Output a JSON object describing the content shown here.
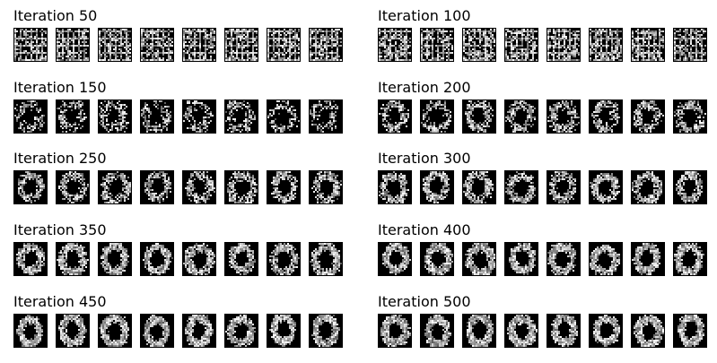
{
  "panels": [
    {
      "title": "Iteration 50",
      "iteration": 50,
      "samples": 8
    },
    {
      "title": "Iteration 100",
      "iteration": 100,
      "samples": 8
    },
    {
      "title": "Iteration 150",
      "iteration": 150,
      "samples": 8
    },
    {
      "title": "Iteration 200",
      "iteration": 200,
      "samples": 8
    },
    {
      "title": "Iteration 250",
      "iteration": 250,
      "samples": 8
    },
    {
      "title": "Iteration 300",
      "iteration": 300,
      "samples": 8
    },
    {
      "title": "Iteration 350",
      "iteration": 350,
      "samples": 8
    },
    {
      "title": "Iteration 400",
      "iteration": 400,
      "samples": 8
    },
    {
      "title": "Iteration 450",
      "iteration": 450,
      "samples": 8
    },
    {
      "title": "Iteration 500",
      "iteration": 500,
      "samples": 8
    }
  ]
}
